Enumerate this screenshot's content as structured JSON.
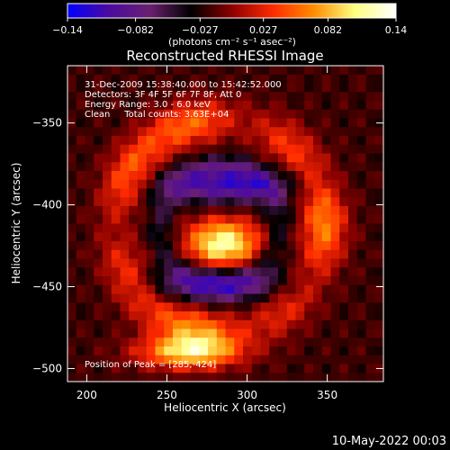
{
  "colorbar": {
    "ticks": [
      "−0.14",
      "−0.082",
      "−0.027",
      "0.027",
      "0.082",
      "0.14"
    ],
    "unit_label": "(photons cm⁻² s⁻¹ asec⁻²)",
    "colors": [
      "#0000ff",
      "#4b0aa0",
      "#6a2070",
      "#000000",
      "#8b0000",
      "#ff2a00",
      "#ff8c00",
      "#ffff80",
      "#ffffff"
    ]
  },
  "info": {
    "line1": "31-Dec-2009 15:38:40.000 to 15:42:52.000",
    "line2": "Detectors: 3F 4F 5F 6F 7F 8F, Att 0",
    "line3": "Energy Range: 3.0 - 6.0 keV",
    "line4": "Clean     Total counts: 3.63E+04",
    "peak": "Position of Peak = [285,-424]"
  },
  "footer_date": "10-May-2022 00:03",
  "chart_data": {
    "type": "heatmap",
    "title": "Reconstructed RHESSI Image",
    "xlabel": "Heliocentric X (arcsec)",
    "ylabel": "Heliocentric Y (arcsec)",
    "xlim": [
      188,
      385
    ],
    "ylim": [
      -508,
      -315
    ],
    "xticks": [
      200,
      250,
      300,
      350
    ],
    "yticks": [
      -350,
      -400,
      -450,
      -500
    ],
    "zlim": [
      -0.14,
      0.14
    ],
    "peak": [
      285,
      -424
    ],
    "features": [
      {
        "shape": "ring",
        "center": [
          283,
          -413
        ],
        "radius": 65,
        "value": 0.075
      },
      {
        "shape": "blob",
        "center": [
          285,
          -424
        ],
        "value": 0.14
      },
      {
        "shape": "blob",
        "center": [
          263,
          -490
        ],
        "value": 0.11
      },
      {
        "shape": "dip",
        "center": [
          288,
          -388
        ],
        "value": -0.09
      },
      {
        "shape": "dip",
        "center": [
          280,
          -448
        ],
        "value": -0.08
      }
    ]
  }
}
